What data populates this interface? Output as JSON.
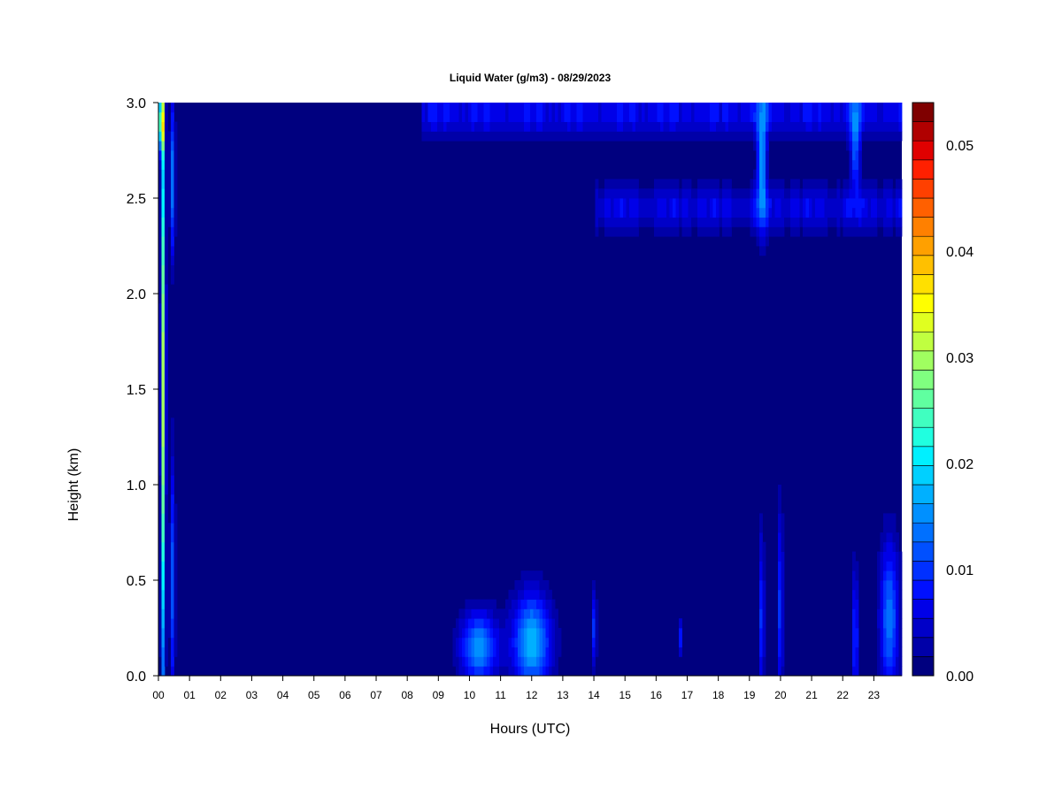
{
  "chart_data": {
    "type": "heatmap",
    "title": "Liquid Water (g/m3) - 08/29/2023",
    "xlabel": "Hours (UTC)",
    "ylabel": "Height (km)",
    "xlim": [
      0,
      23.9
    ],
    "ylim": [
      0,
      3
    ],
    "x_tick_labels": [
      "00",
      "01",
      "02",
      "03",
      "04",
      "05",
      "06",
      "07",
      "08",
      "09",
      "10",
      "11",
      "12",
      "13",
      "14",
      "15",
      "16",
      "17",
      "18",
      "19",
      "20",
      "21",
      "22",
      "23"
    ],
    "y_ticks": [
      0.0,
      0.5,
      1.0,
      1.5,
      2.0,
      2.5,
      3.0
    ],
    "y_tick_labels": [
      "0.0",
      "0.5",
      "1.0",
      "1.5",
      "2.0",
      "2.5",
      "3.0"
    ],
    "colorbar": {
      "min": 0.0,
      "max": 0.054,
      "levels": 27,
      "tick_values": [
        0.0,
        0.01,
        0.02,
        0.03,
        0.04,
        0.05
      ],
      "tick_labels": [
        "0.00",
        "0.01",
        "0.02",
        "0.03",
        "0.04",
        "0.05"
      ],
      "colors": [
        "#00007f",
        "#0000a8",
        "#0000c8",
        "#0000e8",
        "#0010ff",
        "#0030ff",
        "#0050ff",
        "#0070ff",
        "#0090ff",
        "#00b0ff",
        "#00d0ff",
        "#00f0ff",
        "#20ffe0",
        "#40ffc0",
        "#60ffa0",
        "#80ff80",
        "#a0ff60",
        "#c0ff40",
        "#e0ff20",
        "#ffff00",
        "#ffe000",
        "#ffc000",
        "#ffa000",
        "#ff8000",
        "#ff6000",
        "#ff4000",
        "#ff2000",
        "#e00000",
        "#b00000",
        "#7f0000"
      ]
    },
    "features": [
      {
        "kind": "blob",
        "x": 0.15,
        "y": 1.5,
        "sx": 0.07,
        "sy": 1.6,
        "v": 0.03
      },
      {
        "kind": "blob",
        "x": 0.1,
        "y": 2.9,
        "sx": 0.06,
        "sy": 0.15,
        "v": 0.045
      },
      {
        "kind": "blob",
        "x": 0.45,
        "y": 0.5,
        "sx": 0.08,
        "sy": 0.6,
        "v": 0.012
      },
      {
        "kind": "blob",
        "x": 0.45,
        "y": 2.6,
        "sx": 0.08,
        "sy": 0.4,
        "v": 0.014
      },
      {
        "kind": "blob",
        "x": 10.3,
        "y": 0.15,
        "sx": 0.6,
        "sy": 0.18,
        "v": 0.016
      },
      {
        "kind": "blob",
        "x": 12.0,
        "y": 0.18,
        "sx": 0.6,
        "sy": 0.25,
        "v": 0.018
      },
      {
        "kind": "blob",
        "x": 14.0,
        "y": 0.25,
        "sx": 0.08,
        "sy": 0.2,
        "v": 0.01
      },
      {
        "kind": "blob",
        "x": 16.8,
        "y": 0.2,
        "sx": 0.06,
        "sy": 0.08,
        "v": 0.01
      },
      {
        "kind": "blob",
        "x": 19.4,
        "y": 0.3,
        "sx": 0.07,
        "sy": 0.45,
        "v": 0.011
      },
      {
        "kind": "blob",
        "x": 20.0,
        "y": 0.35,
        "sx": 0.07,
        "sy": 0.5,
        "v": 0.012
      },
      {
        "kind": "blob",
        "x": 22.4,
        "y": 0.2,
        "sx": 0.08,
        "sy": 0.35,
        "v": 0.012
      },
      {
        "kind": "blob",
        "x": 23.5,
        "y": 0.3,
        "sx": 0.3,
        "sy": 0.4,
        "v": 0.014
      },
      {
        "kind": "band",
        "x0": 8.5,
        "x1": 23.9,
        "y": 2.95,
        "sy": 0.12,
        "v": 0.009
      },
      {
        "kind": "band",
        "x0": 14.0,
        "x1": 23.9,
        "y": 2.45,
        "sy": 0.12,
        "v": 0.008
      },
      {
        "kind": "blob",
        "x": 19.4,
        "y": 2.7,
        "sx": 0.15,
        "sy": 0.35,
        "v": 0.016
      },
      {
        "kind": "blob",
        "x": 22.4,
        "y": 2.8,
        "sx": 0.15,
        "sy": 0.25,
        "v": 0.013
      }
    ]
  }
}
